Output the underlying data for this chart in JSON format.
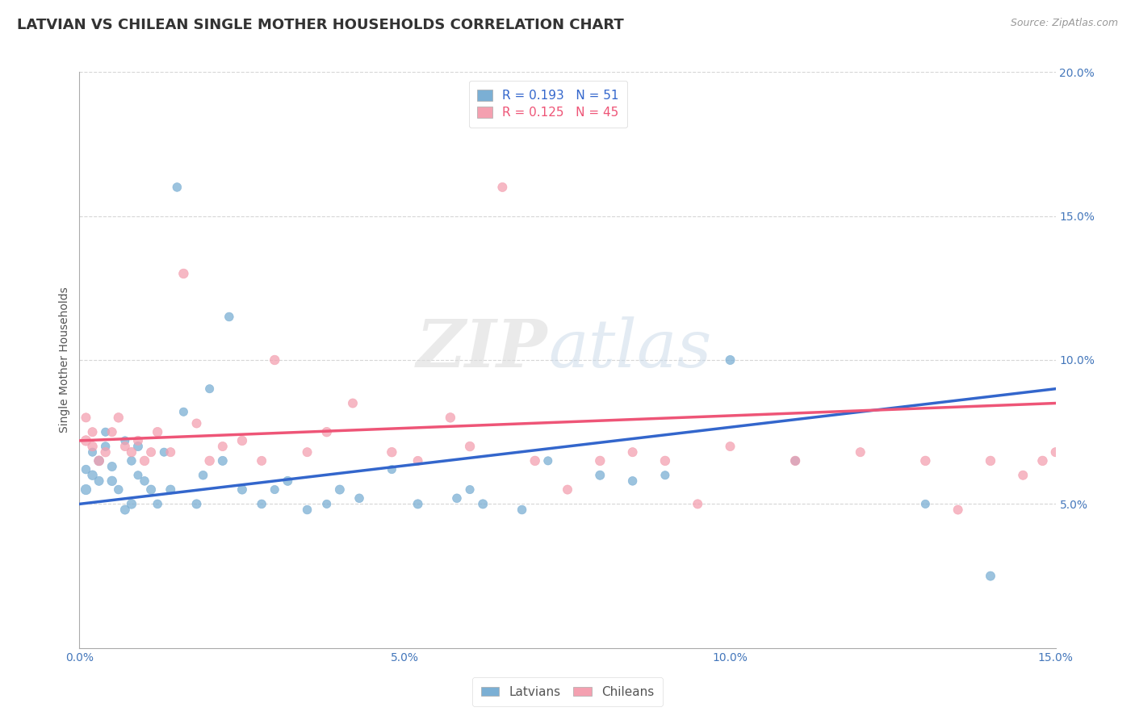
{
  "title": "LATVIAN VS CHILEAN SINGLE MOTHER HOUSEHOLDS CORRELATION CHART",
  "source_text": "Source: ZipAtlas.com",
  "ylabel": "Single Mother Households",
  "watermark_zip": "ZIP",
  "watermark_atlas": "atlas",
  "xlim": [
    0.0,
    0.15
  ],
  "ylim": [
    0.0,
    0.2
  ],
  "x_ticks": [
    0.0,
    0.05,
    0.1,
    0.15
  ],
  "x_tick_labels": [
    "0.0%",
    "5.0%",
    "10.0%",
    "15.0%"
  ],
  "y_ticks": [
    0.05,
    0.1,
    0.15,
    0.2
  ],
  "y_tick_labels": [
    "5.0%",
    "10.0%",
    "15.0%",
    "20.0%"
  ],
  "latvian_color": "#7BAFD4",
  "chilean_color": "#F4A0B0",
  "latvian_line_color": "#3366CC",
  "chilean_line_color": "#EE5577",
  "legend_r1": "R = 0.193",
  "legend_n1": "N = 51",
  "legend_r2": "R = 0.125",
  "legend_n2": "N = 45",
  "latvians_label": "Latvians",
  "chileans_label": "Chileans",
  "title_fontsize": 13,
  "axis_label_fontsize": 10,
  "tick_fontsize": 10,
  "legend_fontsize": 11,
  "latvian_x": [
    0.001,
    0.001,
    0.002,
    0.002,
    0.003,
    0.003,
    0.004,
    0.004,
    0.005,
    0.005,
    0.006,
    0.007,
    0.007,
    0.008,
    0.008,
    0.009,
    0.009,
    0.01,
    0.011,
    0.012,
    0.013,
    0.014,
    0.015,
    0.016,
    0.018,
    0.019,
    0.02,
    0.022,
    0.023,
    0.025,
    0.028,
    0.03,
    0.032,
    0.035,
    0.038,
    0.04,
    0.043,
    0.048,
    0.052,
    0.058,
    0.06,
    0.062,
    0.068,
    0.072,
    0.08,
    0.085,
    0.09,
    0.1,
    0.11,
    0.13,
    0.14
  ],
  "latvian_y": [
    0.055,
    0.062,
    0.06,
    0.068,
    0.058,
    0.065,
    0.07,
    0.075,
    0.063,
    0.058,
    0.055,
    0.072,
    0.048,
    0.05,
    0.065,
    0.06,
    0.07,
    0.058,
    0.055,
    0.05,
    0.068,
    0.055,
    0.16,
    0.082,
    0.05,
    0.06,
    0.09,
    0.065,
    0.115,
    0.055,
    0.05,
    0.055,
    0.058,
    0.048,
    0.05,
    0.055,
    0.052,
    0.062,
    0.05,
    0.052,
    0.055,
    0.05,
    0.048,
    0.065,
    0.06,
    0.058,
    0.06,
    0.1,
    0.065,
    0.05,
    0.025
  ],
  "latvian_sizes": [
    80,
    60,
    70,
    55,
    65,
    70,
    60,
    55,
    65,
    70,
    60,
    55,
    65,
    70,
    60,
    55,
    65,
    60,
    65,
    60,
    55,
    65,
    60,
    55,
    65,
    60,
    55,
    65,
    60,
    65,
    60,
    55,
    65,
    60,
    55,
    65,
    60,
    55,
    65,
    60,
    55,
    65,
    60,
    55,
    65,
    60,
    55,
    65,
    60,
    55,
    65
  ],
  "chilean_x": [
    0.001,
    0.001,
    0.002,
    0.002,
    0.003,
    0.004,
    0.005,
    0.006,
    0.007,
    0.008,
    0.009,
    0.01,
    0.011,
    0.012,
    0.014,
    0.016,
    0.018,
    0.02,
    0.022,
    0.025,
    0.028,
    0.03,
    0.035,
    0.038,
    0.042,
    0.048,
    0.052,
    0.06,
    0.065,
    0.07,
    0.075,
    0.08,
    0.085,
    0.09,
    0.1,
    0.11,
    0.12,
    0.13,
    0.135,
    0.14,
    0.145,
    0.148,
    0.15,
    0.057,
    0.095
  ],
  "chilean_y": [
    0.072,
    0.08,
    0.07,
    0.075,
    0.065,
    0.068,
    0.075,
    0.08,
    0.07,
    0.068,
    0.072,
    0.065,
    0.068,
    0.075,
    0.068,
    0.13,
    0.078,
    0.065,
    0.07,
    0.072,
    0.065,
    0.1,
    0.068,
    0.075,
    0.085,
    0.068,
    0.065,
    0.07,
    0.16,
    0.065,
    0.055,
    0.065,
    0.068,
    0.065,
    0.07,
    0.065,
    0.068,
    0.065,
    0.048,
    0.065,
    0.06,
    0.065,
    0.068,
    0.08,
    0.05
  ],
  "chilean_sizes": [
    80,
    65,
    70,
    65,
    75,
    70,
    65,
    70,
    65,
    70,
    65,
    70,
    65,
    70,
    65,
    70,
    65,
    70,
    65,
    70,
    65,
    70,
    65,
    70,
    65,
    70,
    65,
    70,
    65,
    70,
    65,
    70,
    65,
    70,
    65,
    70,
    65,
    70,
    65,
    70,
    65,
    70,
    65,
    70,
    65
  ],
  "trend_latvian_start_y": 0.05,
  "trend_latvian_end_y": 0.09,
  "trend_chilean_start_y": 0.072,
  "trend_chilean_end_y": 0.085,
  "grid_color": "#CCCCCC",
  "bg_color": "#FFFFFF"
}
